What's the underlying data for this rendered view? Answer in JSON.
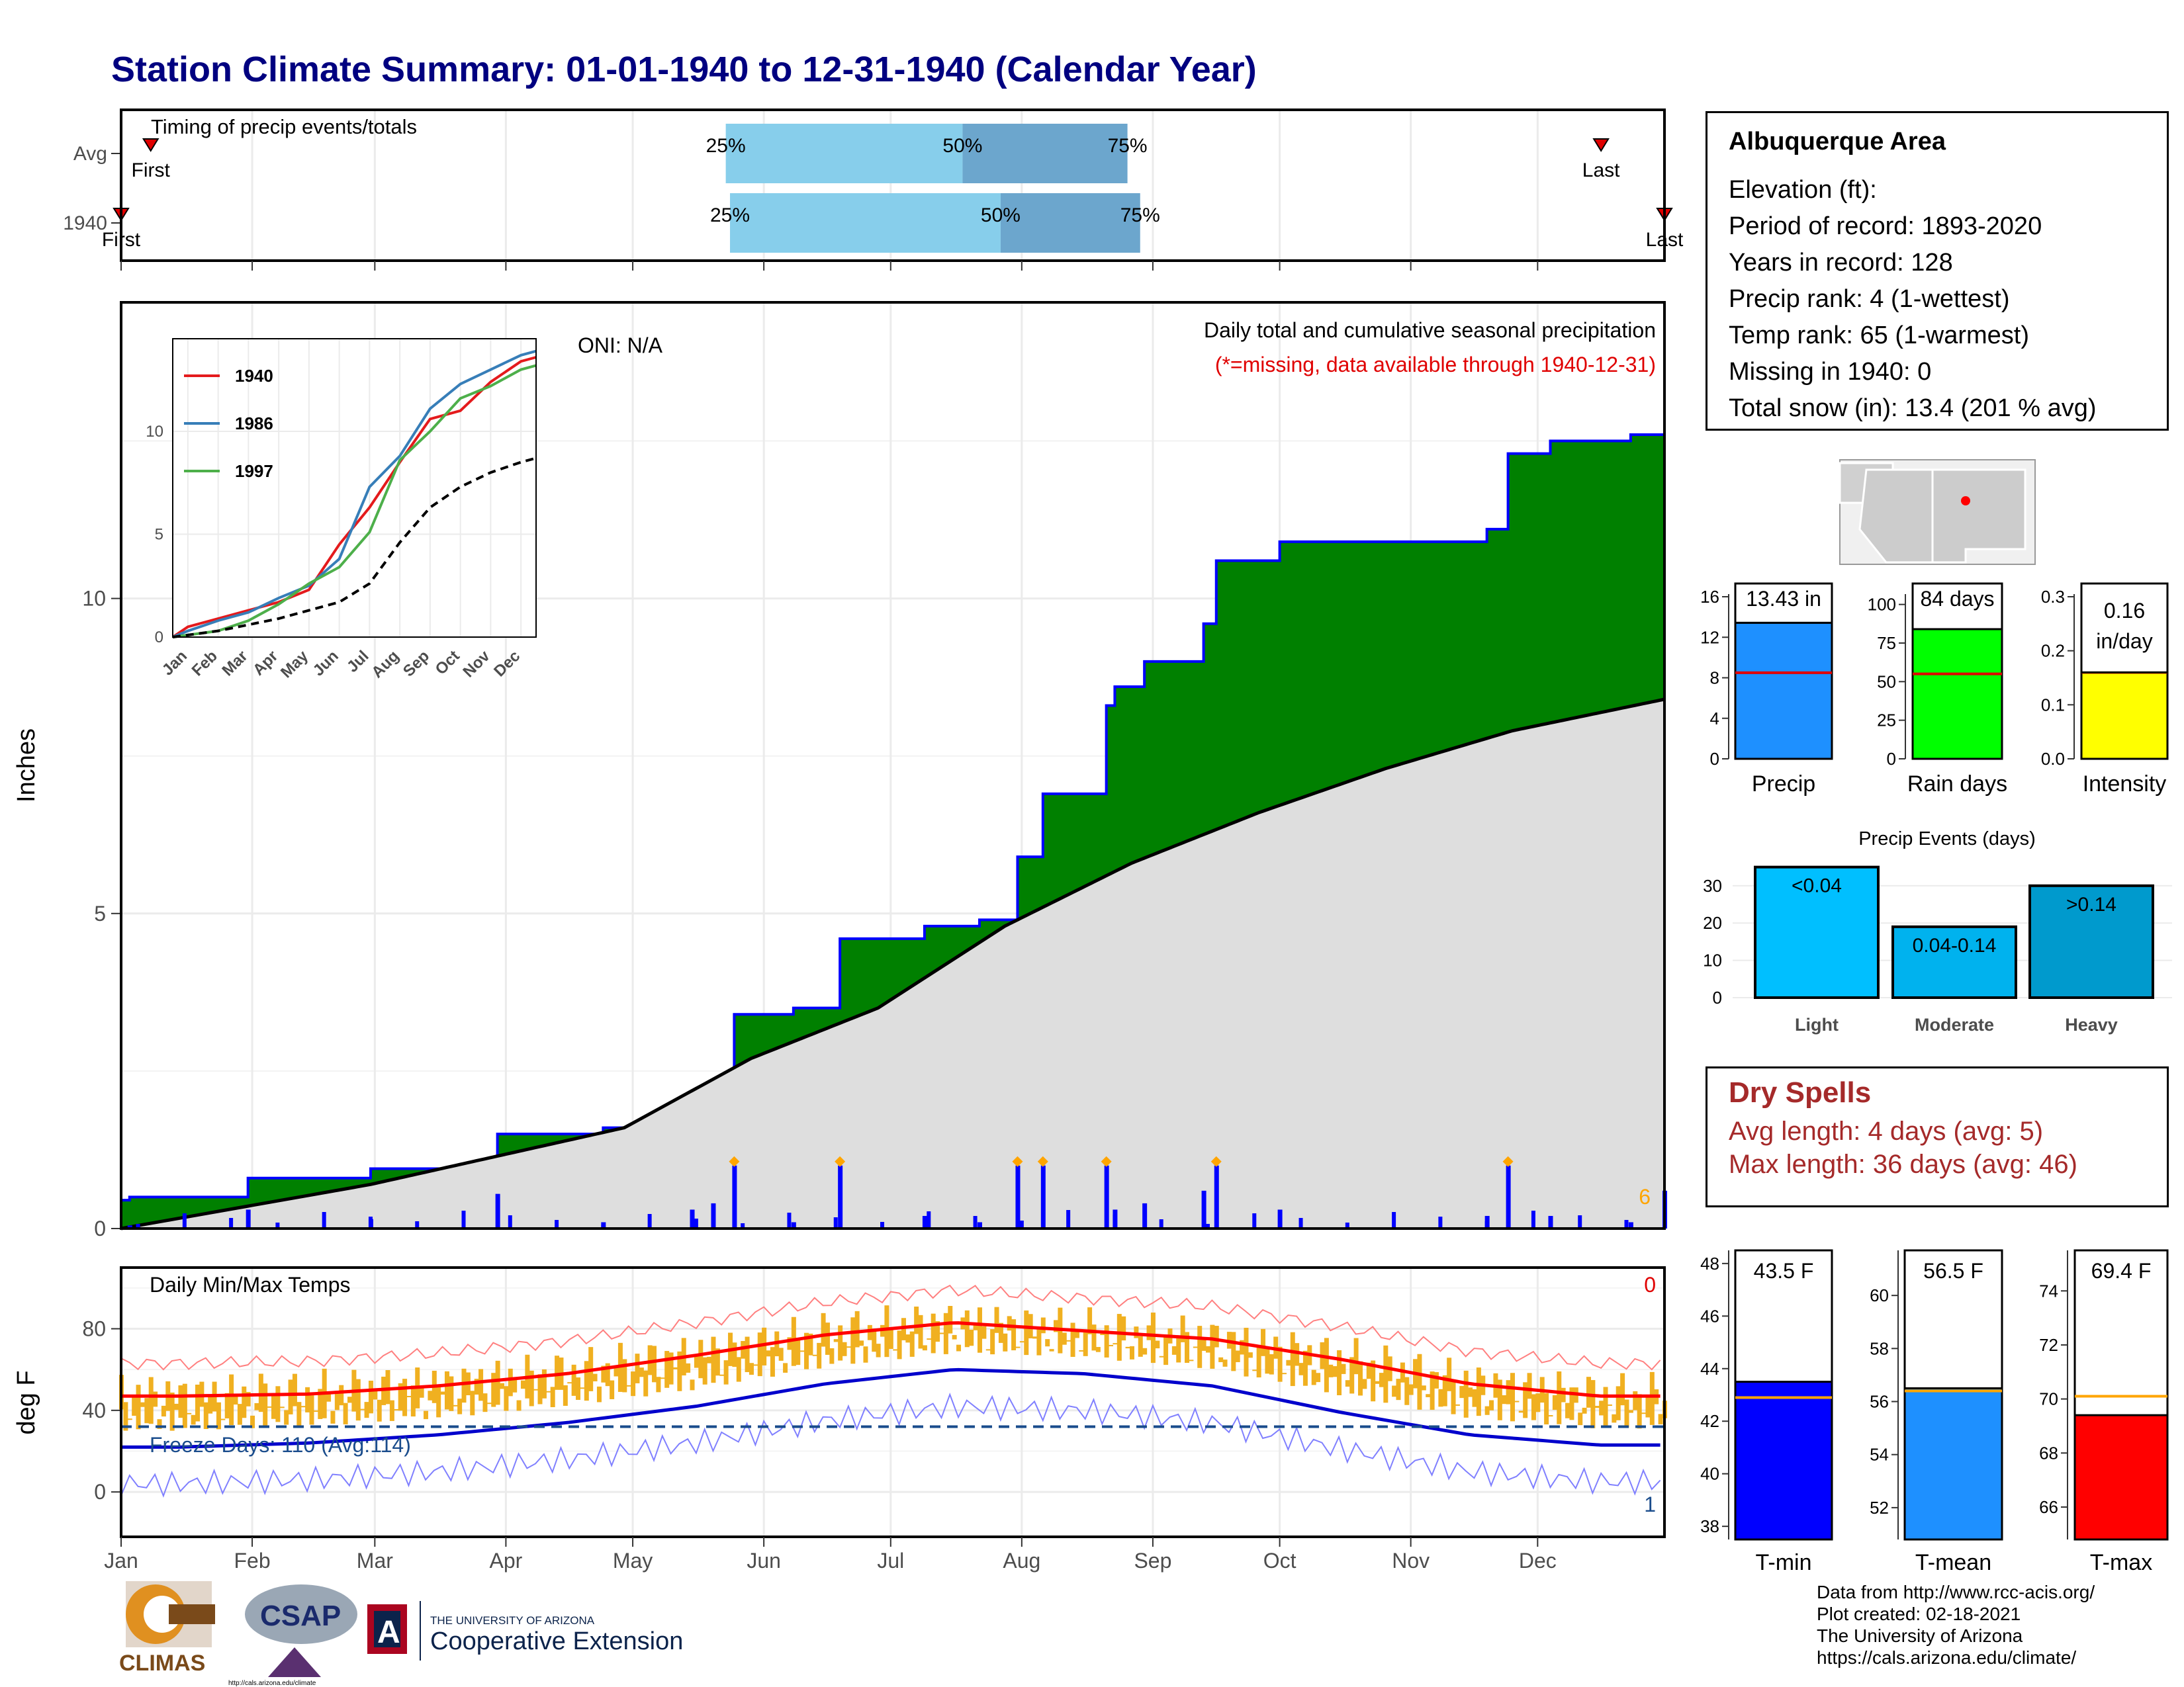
{
  "title": "Station Climate Summary: 01-01-1940 to 12-31-1940 (Calendar Year)",
  "colors": {
    "title": "#000080",
    "cumulative_1940_fill": "#008000",
    "cumulative_outline": "#0000ff",
    "climatology_fill": "#dedede",
    "daily_bars": "#0000ff",
    "temp_range_bars": "#f0b020",
    "avg_max_line": "#ff0000",
    "avg_min_line": "#0000cc",
    "dry_spells_text": "#a52a2a",
    "timing_light": "#87ceeb",
    "timing_dark": "#6ca6cd"
  },
  "timing_panel": {
    "label": "Timing of precip events/totals",
    "rows": [
      "Avg",
      "1940"
    ],
    "first_label": "First",
    "last_label": "Last",
    "pct_labels": [
      "25%",
      "50%",
      "75%"
    ]
  },
  "precip_panel": {
    "ylabel": "Inches",
    "yticks": [
      "0",
      "5",
      "10"
    ],
    "oni": "ONI: N/A",
    "subtitle": "Daily total and cumulative seasonal precipitation",
    "missing_note": "(*=missing, data available through 1940-12-31)",
    "corner_count": "6"
  },
  "inset": {
    "legend": [
      "1940",
      "1986",
      "1997"
    ],
    "legend_colors": [
      "#e41a1c",
      "#377eb8",
      "#4daf4a"
    ],
    "yticks": [
      "0",
      "5",
      "10"
    ],
    "xticks": [
      "Jan",
      "Feb",
      "Mar",
      "Apr",
      "May",
      "Jun",
      "Jul",
      "Aug",
      "Sep",
      "Oct",
      "Nov",
      "Dec"
    ]
  },
  "temp_panel": {
    "label": "Daily Min/Max Temps",
    "ylabel": "deg F",
    "yticks": [
      "0",
      "40",
      "80"
    ],
    "freeze": "Freeze Days: 110 (Avg:114)",
    "top_right_count": "0",
    "bottom_right_count": "1"
  },
  "month_labels": [
    "Jan",
    "Feb",
    "Mar",
    "Apr",
    "May",
    "Jun",
    "Jul",
    "Aug",
    "Sep",
    "Oct",
    "Nov",
    "Dec"
  ],
  "info": {
    "heading": "Albuquerque Area",
    "elevation": "Elevation (ft):",
    "period": "Period of record: 1893-2020",
    "years": "Years in record: 128",
    "precip_rank": "Precip rank: 4 (1-wettest)",
    "temp_rank": "Temp rank: 65 (1-warmest)",
    "missing": "Missing in 1940: 0",
    "snow": "Total snow (in): 13.4 (201 % avg)"
  },
  "mini_bars": [
    {
      "label": "Precip",
      "value_text": "13.43 in",
      "yticks": [
        "0",
        "4",
        "8",
        "12",
        "16"
      ]
    },
    {
      "label": "Rain days",
      "value_text": "84 days",
      "yticks": [
        "0",
        "25",
        "50",
        "75",
        "100"
      ]
    },
    {
      "label": "Intensity",
      "value_text": "0.16",
      "value_text2": "in/day",
      "yticks": [
        "0.0",
        "0.1",
        "0.2",
        "0.3"
      ]
    }
  ],
  "events": {
    "title": "Precip Events (days)",
    "yticks": [
      "0",
      "10",
      "20",
      "30"
    ],
    "categories": [
      "Light",
      "Moderate",
      "Heavy"
    ],
    "bar_labels": [
      "<0.04",
      "0.04-0.14",
      ">0.14"
    ]
  },
  "dry_spells": {
    "heading": "Dry Spells",
    "avg": "Avg length: 4 days (avg: 5)",
    "max": "Max length: 36 days (avg: 46)"
  },
  "temp_bars": [
    {
      "label": "T-min",
      "value_text": "43.5 F",
      "yticks": [
        "38",
        "40",
        "42",
        "44",
        "46",
        "48"
      ]
    },
    {
      "label": "T-mean",
      "value_text": "56.5 F",
      "yticks": [
        "52",
        "54",
        "56",
        "58",
        "60"
      ]
    },
    {
      "label": "T-max",
      "value_text": "69.4 F",
      "yticks": [
        "66",
        "68",
        "70",
        "72",
        "74"
      ]
    }
  ],
  "credits": [
    "Data from http://www.rcc-acis.org/",
    "Plot created: 02-18-2021",
    "The University of Arizona",
    "https://cals.arizona.edu/climate/"
  ],
  "logos": {
    "climas": "CLIMAS",
    "csap": "CSAP",
    "csap_url": "http://cals.arizona.edu/climate",
    "ua_line1": "THE UNIVERSITY OF ARIZONA",
    "ua_line2": "Cooperative Extension"
  },
  "chart_data": [
    {
      "type": "line",
      "title": "Daily total and cumulative seasonal precipitation",
      "ylabel": "Inches",
      "ylim": [
        0,
        14.7
      ],
      "series": [
        {
          "name": "1940",
          "points": [
            [
              1,
              0.45
            ],
            [
              3,
              0.5
            ],
            [
              31,
              0.8
            ],
            [
              60,
              0.95
            ],
            [
              90,
              1.5
            ],
            [
              115,
              1.6
            ],
            [
              136,
              1.9
            ],
            [
              141,
              2.3
            ],
            [
              146,
              3.4
            ],
            [
              160,
              3.5
            ],
            [
              171,
              4.6
            ],
            [
              191,
              4.8
            ],
            [
              204,
              4.9
            ],
            [
              213,
              5.9
            ],
            [
              219,
              6.9
            ],
            [
              234,
              8.3
            ],
            [
              236,
              8.6
            ],
            [
              243,
              9.0
            ],
            [
              257,
              9.6
            ],
            [
              260,
              10.6
            ],
            [
              275,
              10.9
            ],
            [
              324,
              11.1
            ],
            [
              329,
              12.3
            ],
            [
              339,
              12.5
            ],
            [
              358,
              12.6
            ],
            [
              366,
              13.2
            ]
          ]
        },
        {
          "points": [
            [
              1,
              0
            ],
            [
              60,
              0.7
            ],
            [
              120,
              1.6
            ],
            [
              150,
              2.7
            ],
            [
              180,
              3.5
            ],
            [
              210,
              4.8
            ],
            [
              240,
              5.8
            ],
            [
              270,
              6.6
            ],
            [
              300,
              7.3
            ],
            [
              330,
              7.9
            ],
            [
              366,
              8.4
            ]
          ]
        }
      ],
      "annotations": [
        "ONI: N/A",
        "(*=missing, data available through 1940-12-31)"
      ]
    },
    {
      "type": "line",
      "yticks": [
        0,
        5,
        10
      ],
      "ylim": [
        0,
        14.5
      ],
      "categories": [
        "Jan",
        "Feb",
        "Mar",
        "Apr",
        "May",
        "Jun",
        "Jul",
        "Aug",
        "Sep",
        "Oct",
        "Nov",
        "Dec"
      ],
      "series": [
        {
          "name": "1940",
          "values": [
            0.5,
            0.9,
            1.3,
            1.7,
            2.3,
            4.5,
            6.3,
            8.5,
            10.6,
            11.0,
            12.4,
            13.4
          ]
        },
        {
          "name": "1986",
          "values": [
            0.3,
            0.8,
            1.2,
            1.9,
            2.5,
            3.8,
            7.3,
            8.8,
            11.1,
            12.3,
            13.0,
            13.7
          ]
        },
        {
          "name": "1997",
          "values": [
            0.1,
            0.3,
            0.8,
            1.6,
            2.6,
            3.4,
            5.1,
            8.6,
            10.0,
            11.6,
            12.2,
            13.0
          ]
        },
        {
          "values": [
            0.1,
            0.3,
            0.6,
            0.9,
            1.3,
            1.7,
            2.6,
            4.6,
            6.3,
            7.3,
            8.0,
            8.5
          ]
        }
      ]
    },
    {
      "type": "bar",
      "title": "Precip Events (days)",
      "categories": [
        "Light",
        "Moderate",
        "Heavy"
      ],
      "values": [
        35,
        19,
        30
      ],
      "ylim": [
        0,
        36
      ]
    },
    {
      "type": "bar",
      "categories": [
        "Precip",
        "Rain days",
        "Intensity"
      ],
      "values": [
        13.43,
        84,
        0.16
      ],
      "averages": [
        8.5,
        55,
        0.16
      ]
    },
    {
      "type": "bar",
      "categories": [
        "T-min",
        "T-mean",
        "T-max"
      ],
      "values": [
        43.5,
        56.5,
        69.4
      ],
      "averages": [
        42.9,
        56.4,
        70.1
      ]
    },
    {
      "type": "line",
      "title": "Daily Min/Max Temps",
      "ylabel": "deg F",
      "ylim": [
        -22,
        110
      ],
      "series": [
        {
          "values": [
            47,
            48,
            52,
            58,
            67,
            77,
            83,
            79,
            75,
            65,
            53,
            47
          ]
        },
        {
          "values": [
            22,
            24,
            28,
            34,
            42,
            53,
            60,
            58,
            52,
            39,
            28,
            23
          ]
        }
      ]
    },
    {
      "type": "bar",
      "title": "Timing of precip events/totals",
      "categories": [
        "Avg",
        "1940"
      ],
      "series": [
        {
          "values": [
            [
              144,
              200,
              239
            ],
            [
              145,
              209,
              242
            ]
          ]
        },
        {
          "first": [
            8,
            1
          ],
          "last": [
            351,
            366
          ]
        }
      ]
    }
  ]
}
